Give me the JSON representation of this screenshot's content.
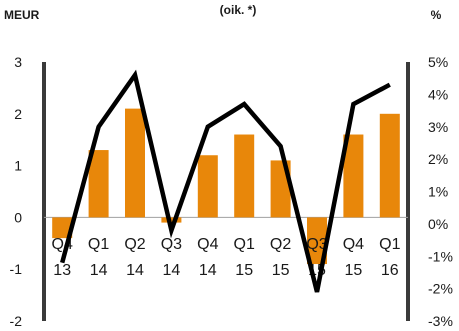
{
  "chart_data": {
    "type": "bar+line",
    "unit_left": "MEUR",
    "unit_center": "(oik. *)",
    "unit_right": "%",
    "colors": {
      "bar": "#e8870a",
      "line": "#000000",
      "axis": "#3a3a3a"
    },
    "categories": [
      {
        "q": "Q4",
        "y": "13"
      },
      {
        "q": "Q1",
        "y": "14"
      },
      {
        "q": "Q2",
        "y": "14"
      },
      {
        "q": "Q3",
        "y": "14"
      },
      {
        "q": "Q4",
        "y": "14"
      },
      {
        "q": "Q1",
        "y": "15"
      },
      {
        "q": "Q2",
        "y": "15"
      },
      {
        "q": "Q3",
        "y": "15"
      },
      {
        "q": "Q4",
        "y": "15"
      },
      {
        "q": "Q1",
        "y": "16"
      }
    ],
    "bar_values": [
      -0.4,
      1.3,
      2.1,
      -0.1,
      1.2,
      1.6,
      1.1,
      -0.9,
      1.6,
      2.0
    ],
    "line_values": [
      -1.2,
      3.0,
      4.6,
      -0.2,
      3.0,
      3.7,
      2.4,
      -2.1,
      3.7,
      4.3
    ],
    "left_axis": {
      "min": -2,
      "max": 3,
      "ticks": [
        "-2",
        "-1",
        "0",
        "1",
        "2",
        "3"
      ]
    },
    "right_axis": {
      "min": -3,
      "max": 5,
      "ticks": [
        "-3%",
        "-2%",
        "-1%",
        "0%",
        "1%",
        "2%",
        "3%",
        "4%",
        "5%"
      ]
    }
  }
}
